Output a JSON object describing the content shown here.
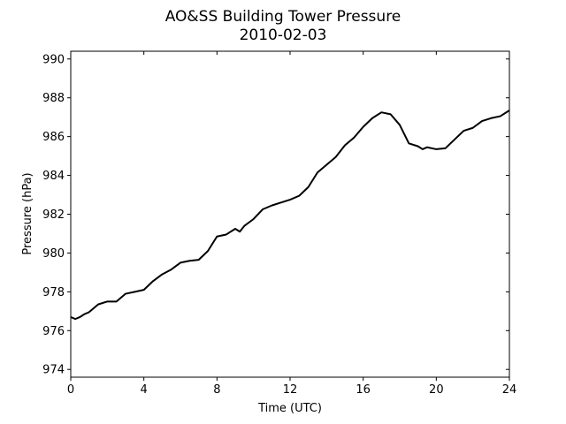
{
  "chart_data": {
    "type": "line",
    "title": "AO&SS Building Tower Pressure",
    "subtitle": "2010-02-03",
    "xlabel": "Time (UTC)",
    "ylabel": "Pressure (hPa)",
    "xlim": [
      0,
      24
    ],
    "ylim": [
      973.6,
      990.4
    ],
    "x_ticks": [
      0,
      4,
      8,
      12,
      16,
      20,
      24
    ],
    "y_ticks": [
      974,
      976,
      978,
      980,
      982,
      984,
      986,
      988,
      990
    ],
    "grid": false,
    "line_color": "#000000",
    "series": [
      {
        "x": [
          0,
          0.25,
          0.5,
          0.75,
          1,
          1.5,
          2,
          2.5,
          3,
          3.5,
          4,
          4.5,
          5,
          5.5,
          6,
          6.5,
          7,
          7.5,
          8,
          8.5,
          9,
          9.25,
          9.5,
          10,
          10.5,
          11,
          11.5,
          12,
          12.5,
          13,
          13.5,
          14,
          14.5,
          15,
          15.5,
          16,
          16.5,
          17,
          17.5,
          18,
          18.5,
          19,
          19.25,
          19.5,
          20,
          20.5,
          21,
          21.5,
          22,
          22.5,
          23,
          23.5,
          24
        ],
        "y": [
          976.7,
          976.6,
          976.7,
          976.85,
          976.95,
          977.35,
          977.5,
          977.5,
          977.9,
          978.0,
          978.1,
          978.55,
          978.9,
          979.15,
          979.5,
          979.6,
          979.65,
          980.1,
          980.85,
          980.95,
          981.25,
          981.1,
          981.4,
          981.75,
          982.25,
          982.45,
          982.6,
          982.75,
          982.95,
          983.4,
          984.15,
          984.55,
          984.95,
          985.55,
          985.95,
          986.5,
          986.95,
          987.25,
          987.15,
          986.6,
          985.65,
          985.5,
          985.35,
          985.45,
          985.35,
          985.4,
          985.85,
          986.3,
          986.45,
          986.8,
          986.95,
          987.05,
          987.35
        ]
      }
    ]
  }
}
